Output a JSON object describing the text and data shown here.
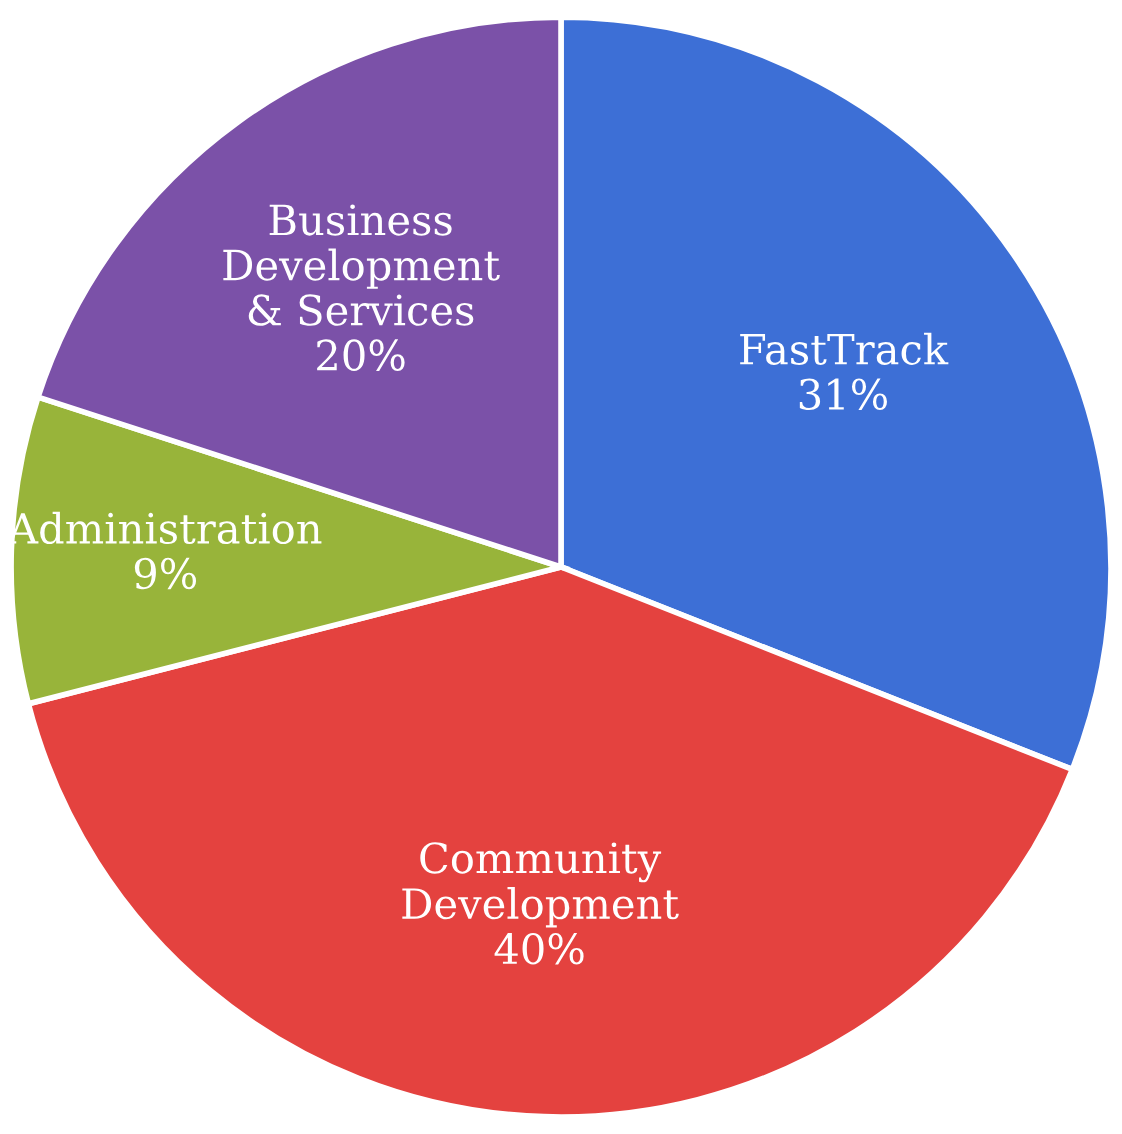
{
  "chart_data": {
    "type": "pie",
    "categories": [
      "FastTrack",
      "Community\nDevelopment",
      "Administration",
      "Business\nDevelopment\n& Services"
    ],
    "values": [
      31,
      40,
      9,
      20
    ],
    "colors": [
      "#3d6fd6",
      "#e4423f",
      "#98b43a",
      "#7b51a8"
    ],
    "value_labels": [
      "31%",
      "40%",
      "9%",
      "20%"
    ]
  }
}
